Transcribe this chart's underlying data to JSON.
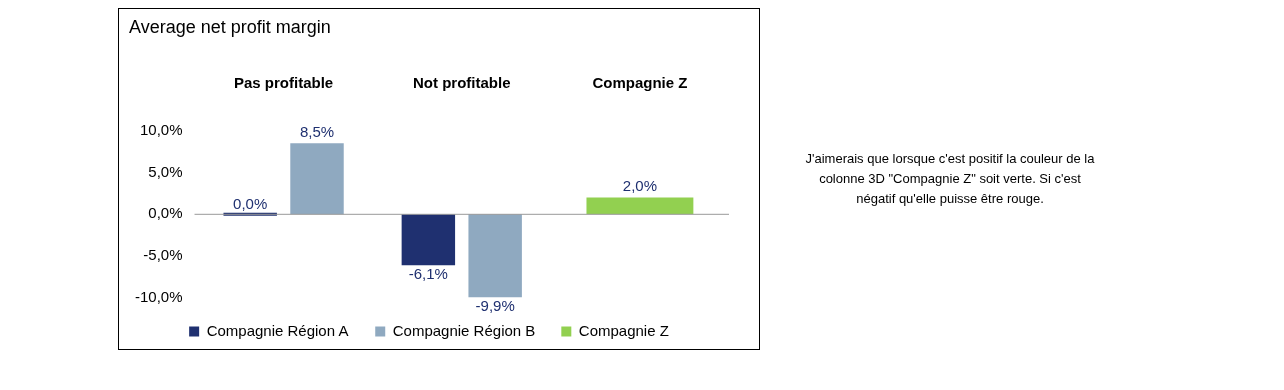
{
  "chart_data": {
    "type": "bar",
    "title": "Average net profit margin",
    "categories": [
      "Pas profitable",
      "Not profitable",
      "Compagnie Z"
    ],
    "series": [
      {
        "name": "Compagnie Région A",
        "color": "#1f3070",
        "values": [
          0.0,
          -6.1,
          null
        ],
        "value_labels": [
          "0,0%",
          "-6,1%",
          null
        ]
      },
      {
        "name": "Compagnie Région B",
        "color": "#8fa9c0",
        "values": [
          8.5,
          -9.9,
          null
        ],
        "value_labels": [
          "8,5%",
          "-9,9%",
          null
        ]
      },
      {
        "name": "Compagnie Z",
        "color": "#92d050",
        "values": [
          null,
          null,
          2.0
        ],
        "value_labels": [
          null,
          null,
          "2,0%"
        ]
      }
    ],
    "ylim": [
      -10,
      10
    ],
    "ref_lines": [
      {
        "axis": "y",
        "value": 0,
        "color": "#999999"
      }
    ],
    "yticks": [
      {
        "value": -10,
        "label": "-10,0%"
      },
      {
        "value": -5,
        "label": "-5,0%"
      },
      {
        "value": 0,
        "label": "0,0%"
      },
      {
        "value": 5,
        "label": "5,0%"
      },
      {
        "value": 10,
        "label": "10,0%"
      }
    ],
    "grid": false,
    "legend": "bottom",
    "annotations": [
      "J'aimerais que lorsque c'est positif la couleur de la colonne 3D \"Compagnie Z\" soit verte. Si c'est négatif qu'elle puisse être rouge."
    ]
  }
}
